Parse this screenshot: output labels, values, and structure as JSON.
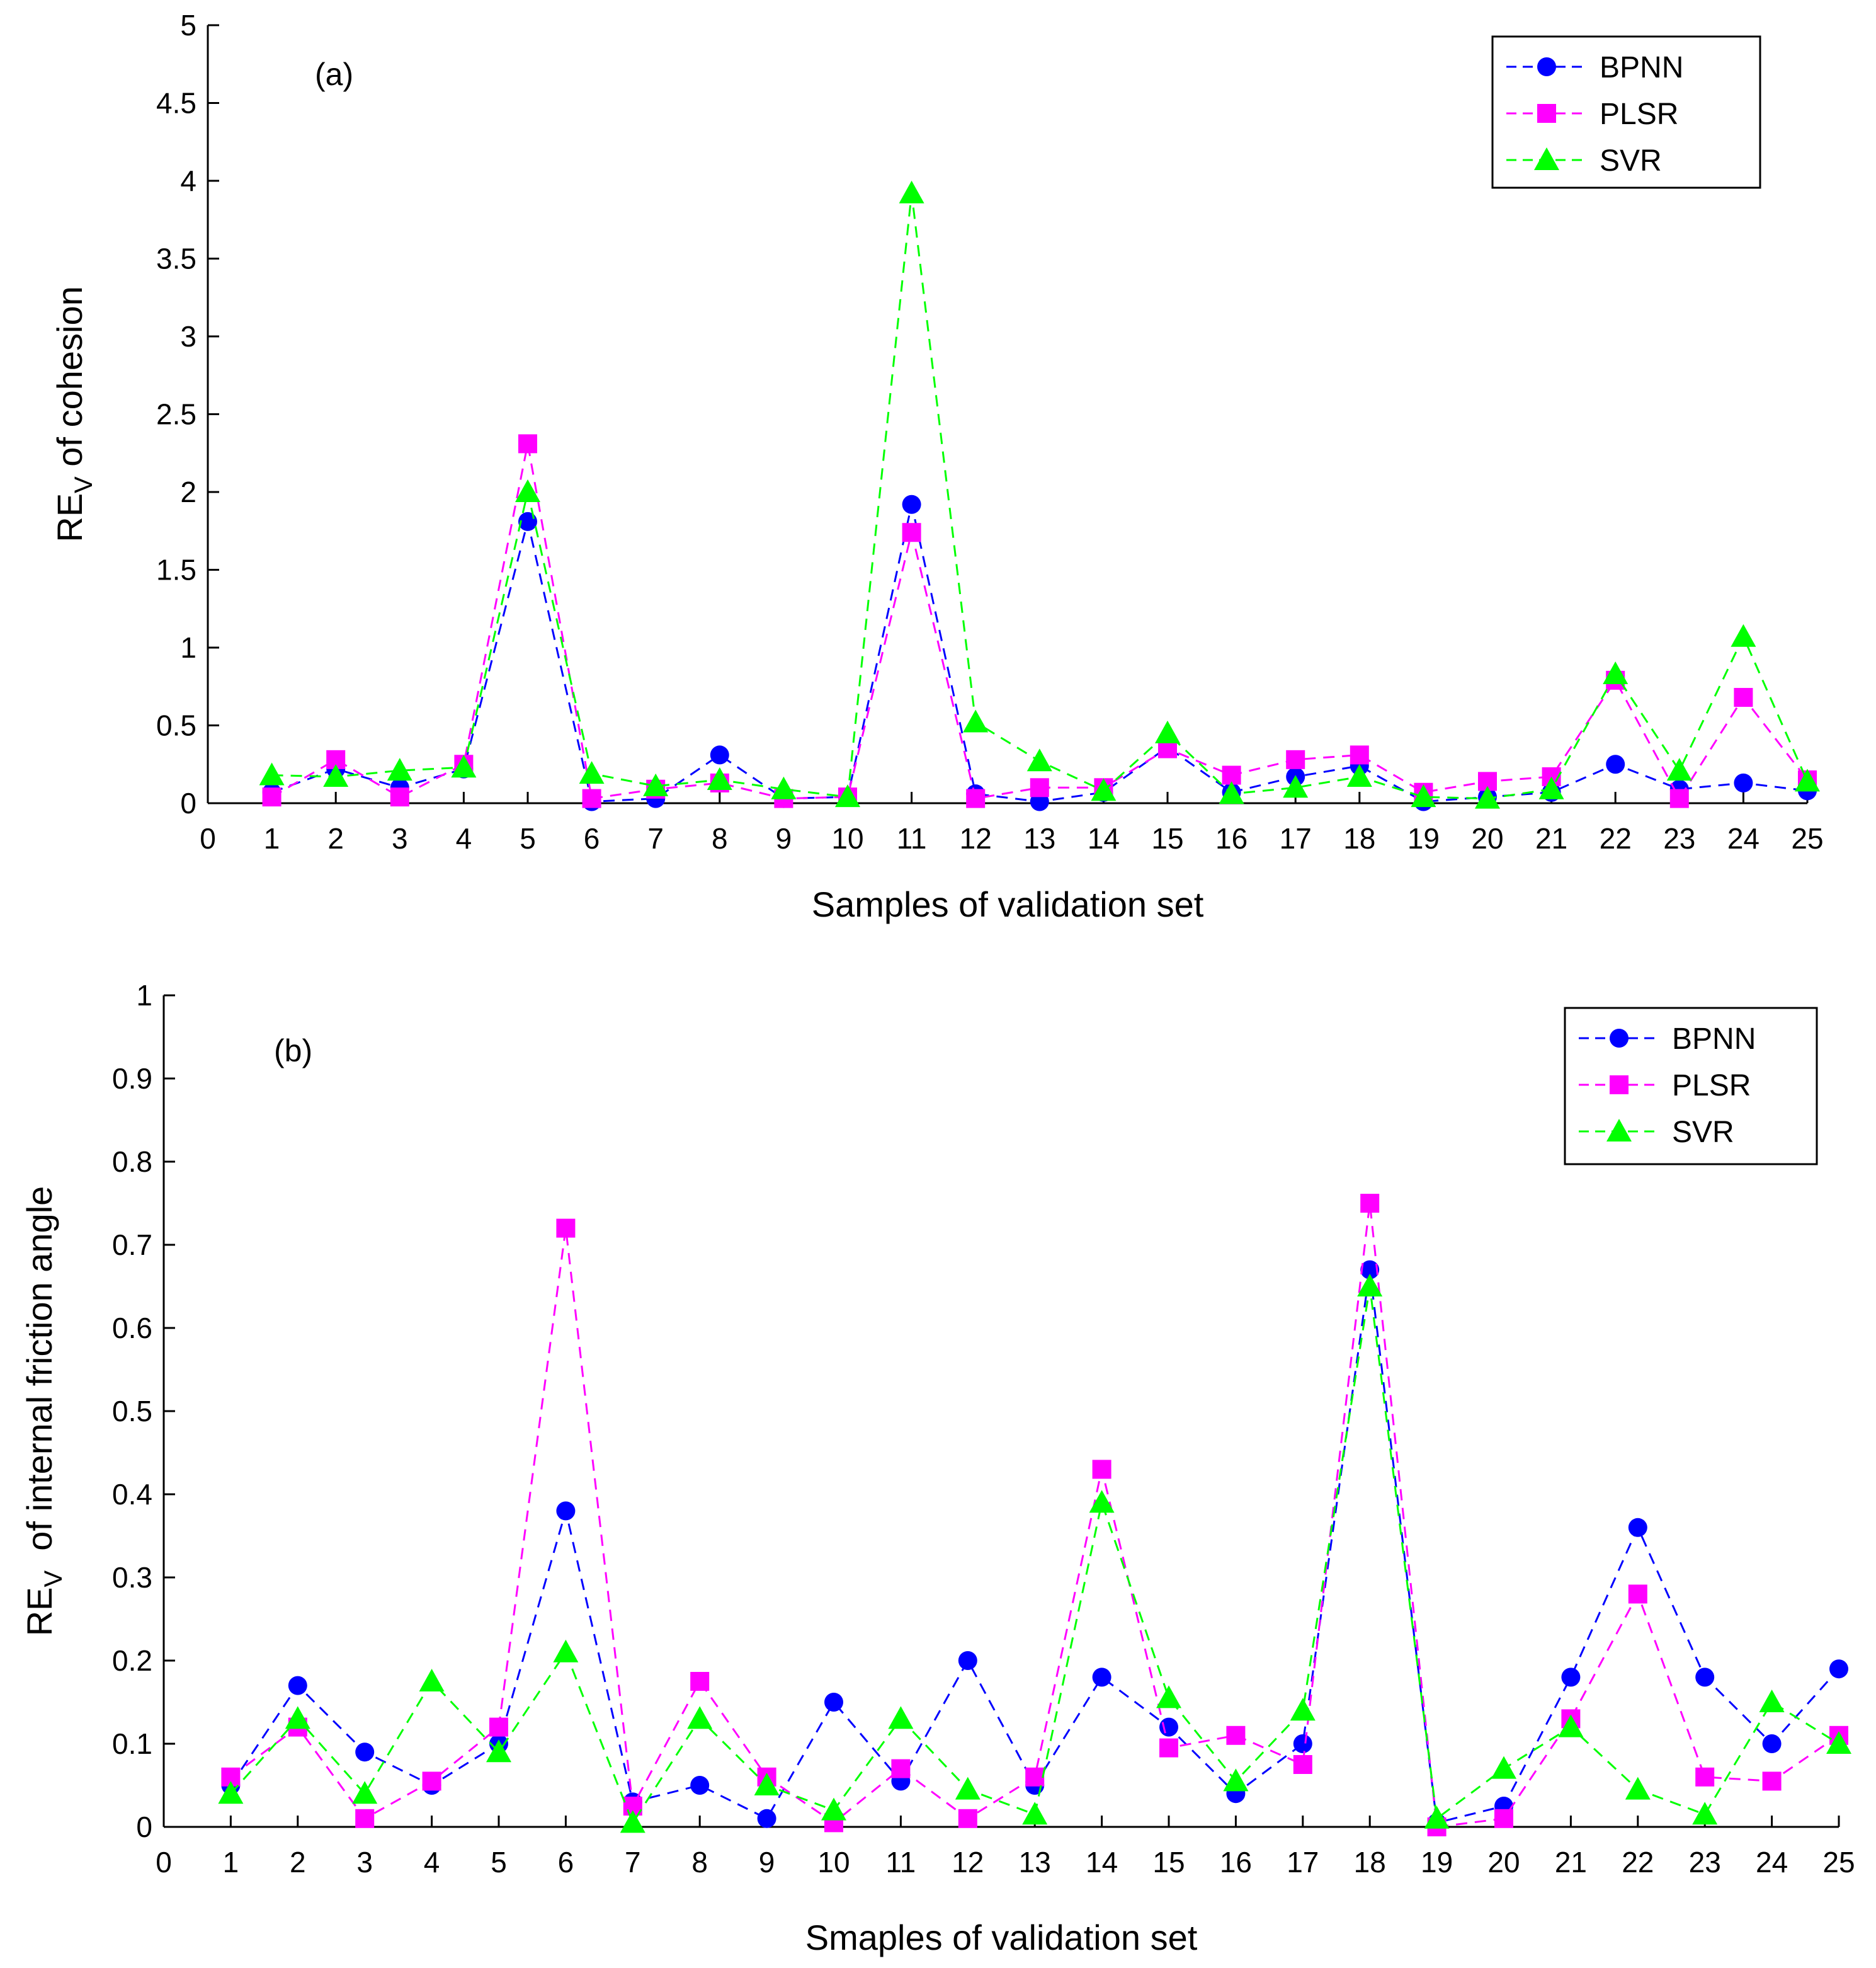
{
  "colors": {
    "BPNN": "#0000ff",
    "PLSR": "#ff00ff",
    "SVR": "#00ff00",
    "axis": "#000000"
  },
  "chart_data": [
    {
      "type": "line",
      "panel": "(a)",
      "xlabel": "Samples of validation set",
      "ylabel_main": "RE",
      "ylabel_sub": "V",
      "ylabel_rest": " of cohesion",
      "xlim": [
        0,
        25
      ],
      "ylim": [
        0,
        5
      ],
      "xticks": [
        0,
        1,
        2,
        3,
        4,
        5,
        6,
        7,
        8,
        9,
        10,
        11,
        12,
        13,
        14,
        15,
        16,
        17,
        18,
        19,
        20,
        21,
        22,
        23,
        24,
        25
      ],
      "yticks": [
        0,
        0.5,
        1,
        1.5,
        2,
        2.5,
        3,
        3.5,
        4,
        4.5,
        5
      ],
      "ytick_labels": [
        "0",
        "0.5",
        "1",
        "1.5",
        "2",
        "2.5",
        "3",
        "3.5",
        "4",
        "4.5",
        "5"
      ],
      "legend_position": "top-right",
      "x": [
        1,
        2,
        3,
        4,
        5,
        6,
        7,
        8,
        9,
        10,
        11,
        12,
        13,
        14,
        15,
        16,
        17,
        18,
        19,
        20,
        21,
        22,
        23,
        24,
        25
      ],
      "series": [
        {
          "name": "BPNN",
          "marker": "circle",
          "values": [
            0.07,
            0.22,
            0.1,
            0.22,
            1.81,
            0.01,
            0.03,
            0.31,
            0.03,
            0.04,
            1.92,
            0.06,
            0.01,
            0.07,
            0.36,
            0.07,
            0.17,
            0.24,
            0.01,
            0.04,
            0.07,
            0.25,
            0.09,
            0.13,
            0.08
          ]
        },
        {
          "name": "PLSR",
          "marker": "square",
          "values": [
            0.04,
            0.28,
            0.04,
            0.25,
            2.31,
            0.03,
            0.09,
            0.13,
            0.03,
            0.04,
            1.74,
            0.03,
            0.1,
            0.1,
            0.35,
            0.18,
            0.28,
            0.31,
            0.07,
            0.14,
            0.17,
            0.79,
            0.03,
            0.68,
            0.15
          ]
        },
        {
          "name": "SVR",
          "marker": "triangle",
          "values": [
            0.18,
            0.17,
            0.21,
            0.23,
            2.0,
            0.19,
            0.11,
            0.15,
            0.09,
            0.04,
            3.92,
            0.52,
            0.27,
            0.08,
            0.45,
            0.06,
            0.1,
            0.17,
            0.04,
            0.03,
            0.09,
            0.83,
            0.21,
            1.07,
            0.14
          ]
        }
      ]
    },
    {
      "type": "line",
      "panel": "(b)",
      "xlabel": "Smaples of validation set",
      "ylabel_main": "RE",
      "ylabel_sub": "V",
      "ylabel_rest": "  of internal friction angle",
      "xlim": [
        0,
        25
      ],
      "ylim": [
        0,
        1
      ],
      "xticks": [
        0,
        1,
        2,
        3,
        4,
        5,
        6,
        7,
        8,
        9,
        10,
        11,
        12,
        13,
        14,
        15,
        16,
        17,
        18,
        19,
        20,
        21,
        22,
        23,
        24,
        25
      ],
      "yticks": [
        0,
        0.1,
        0.2,
        0.3,
        0.4,
        0.5,
        0.6,
        0.7,
        0.8,
        0.9,
        1
      ],
      "ytick_labels": [
        "0",
        "0.1",
        "0.2",
        "0.3",
        "0.4",
        "0.5",
        "0.6",
        "0.7",
        "0.8",
        "0.9",
        "1"
      ],
      "legend_position": "top-right",
      "x": [
        1,
        2,
        3,
        4,
        5,
        6,
        7,
        8,
        9,
        10,
        11,
        12,
        13,
        14,
        15,
        16,
        17,
        18,
        19,
        20,
        21,
        22,
        23,
        24,
        25
      ],
      "series": [
        {
          "name": "BPNN",
          "marker": "circle",
          "values": [
            0.05,
            0.17,
            0.09,
            0.05,
            0.1,
            0.38,
            0.03,
            0.05,
            0.01,
            0.15,
            0.055,
            0.2,
            0.05,
            0.18,
            0.12,
            0.04,
            0.1,
            0.67,
            0.005,
            0.025,
            0.18,
            0.36,
            0.18,
            0.1,
            0.19
          ]
        },
        {
          "name": "PLSR",
          "marker": "square",
          "values": [
            0.06,
            0.12,
            0.01,
            0.055,
            0.12,
            0.72,
            0.025,
            0.175,
            0.06,
            0.005,
            0.07,
            0.01,
            0.06,
            0.43,
            0.095,
            0.11,
            0.075,
            0.75,
            0.0,
            0.01,
            0.13,
            0.28,
            0.06,
            0.055,
            0.11
          ]
        },
        {
          "name": "SVR",
          "marker": "triangle",
          "values": [
            0.04,
            0.13,
            0.04,
            0.175,
            0.09,
            0.21,
            0.005,
            0.13,
            0.05,
            0.02,
            0.13,
            0.045,
            0.015,
            0.39,
            0.155,
            0.055,
            0.14,
            0.65,
            0.01,
            0.07,
            0.12,
            0.045,
            0.015,
            0.15,
            0.1
          ]
        }
      ]
    }
  ]
}
